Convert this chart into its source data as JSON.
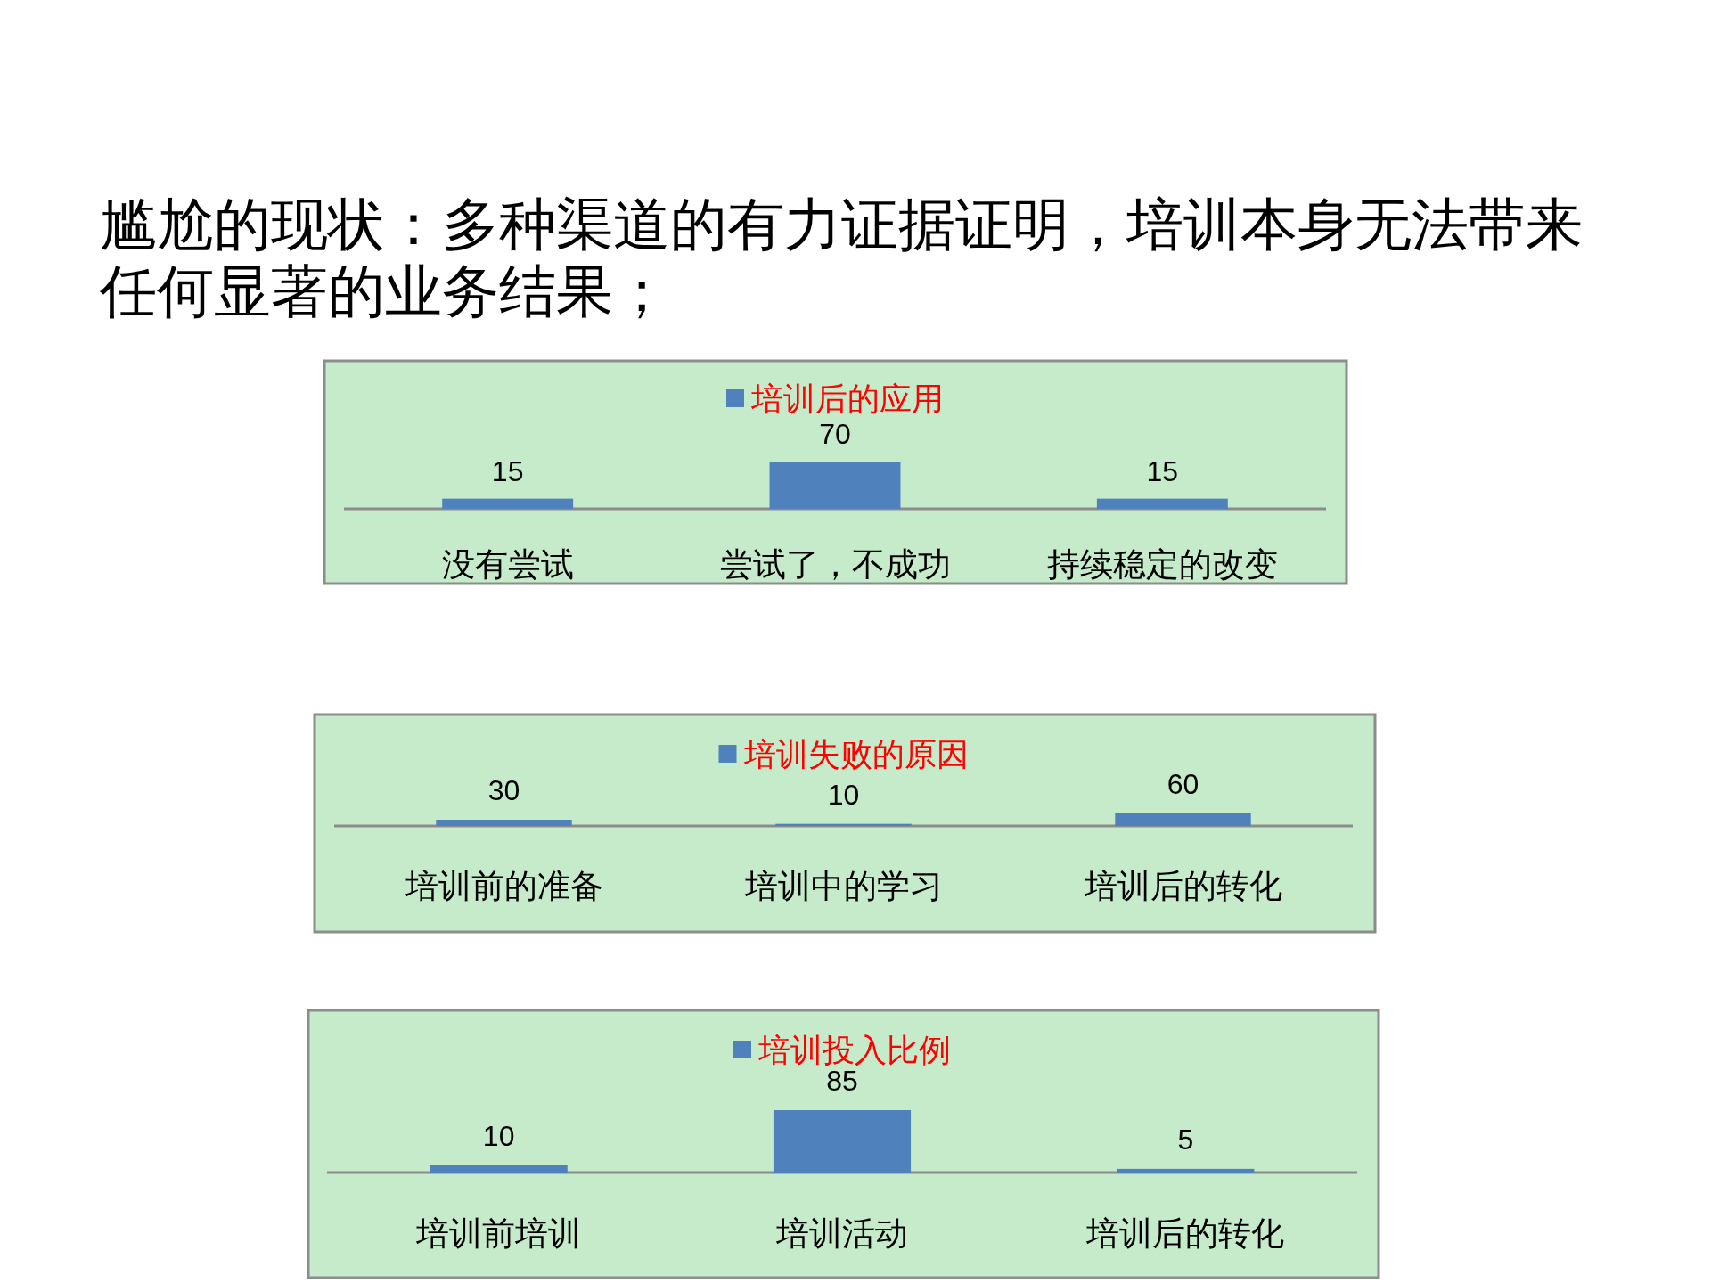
{
  "chart_data": [
    {
      "type": "other",
      "title": "尴尬的现状：多种渠道的有力证据证明，培训本身无法带来任何显著的业务结果；"
    },
    {
      "type": "bar",
      "categories": [
        "没有尝试",
        "尝试了，不成功",
        "持续稳定的改变"
      ],
      "series": [
        {
          "name": "培训后的应用",
          "color": "#4f81bd",
          "values": [
            15,
            70,
            15
          ]
        }
      ],
      "data_labels": true,
      "legend": "top"
    },
    {
      "type": "bar",
      "categories": [
        "培训前的准备",
        "培训中的学习",
        "培训后的转化"
      ],
      "series": [
        {
          "name": "培训失败的原因",
          "color": "#4f81bd",
          "values": [
            30,
            10,
            60
          ]
        }
      ],
      "data_labels": true,
      "legend": "top"
    },
    {
      "type": "bar",
      "categories": [
        "培训前培训",
        "培训活动",
        "培训后的转化"
      ],
      "series": [
        {
          "name": "培训投入比例",
          "color": "#4f81bd",
          "values": [
            10,
            85,
            5
          ]
        }
      ],
      "data_labels": true,
      "legend": "top"
    }
  ]
}
